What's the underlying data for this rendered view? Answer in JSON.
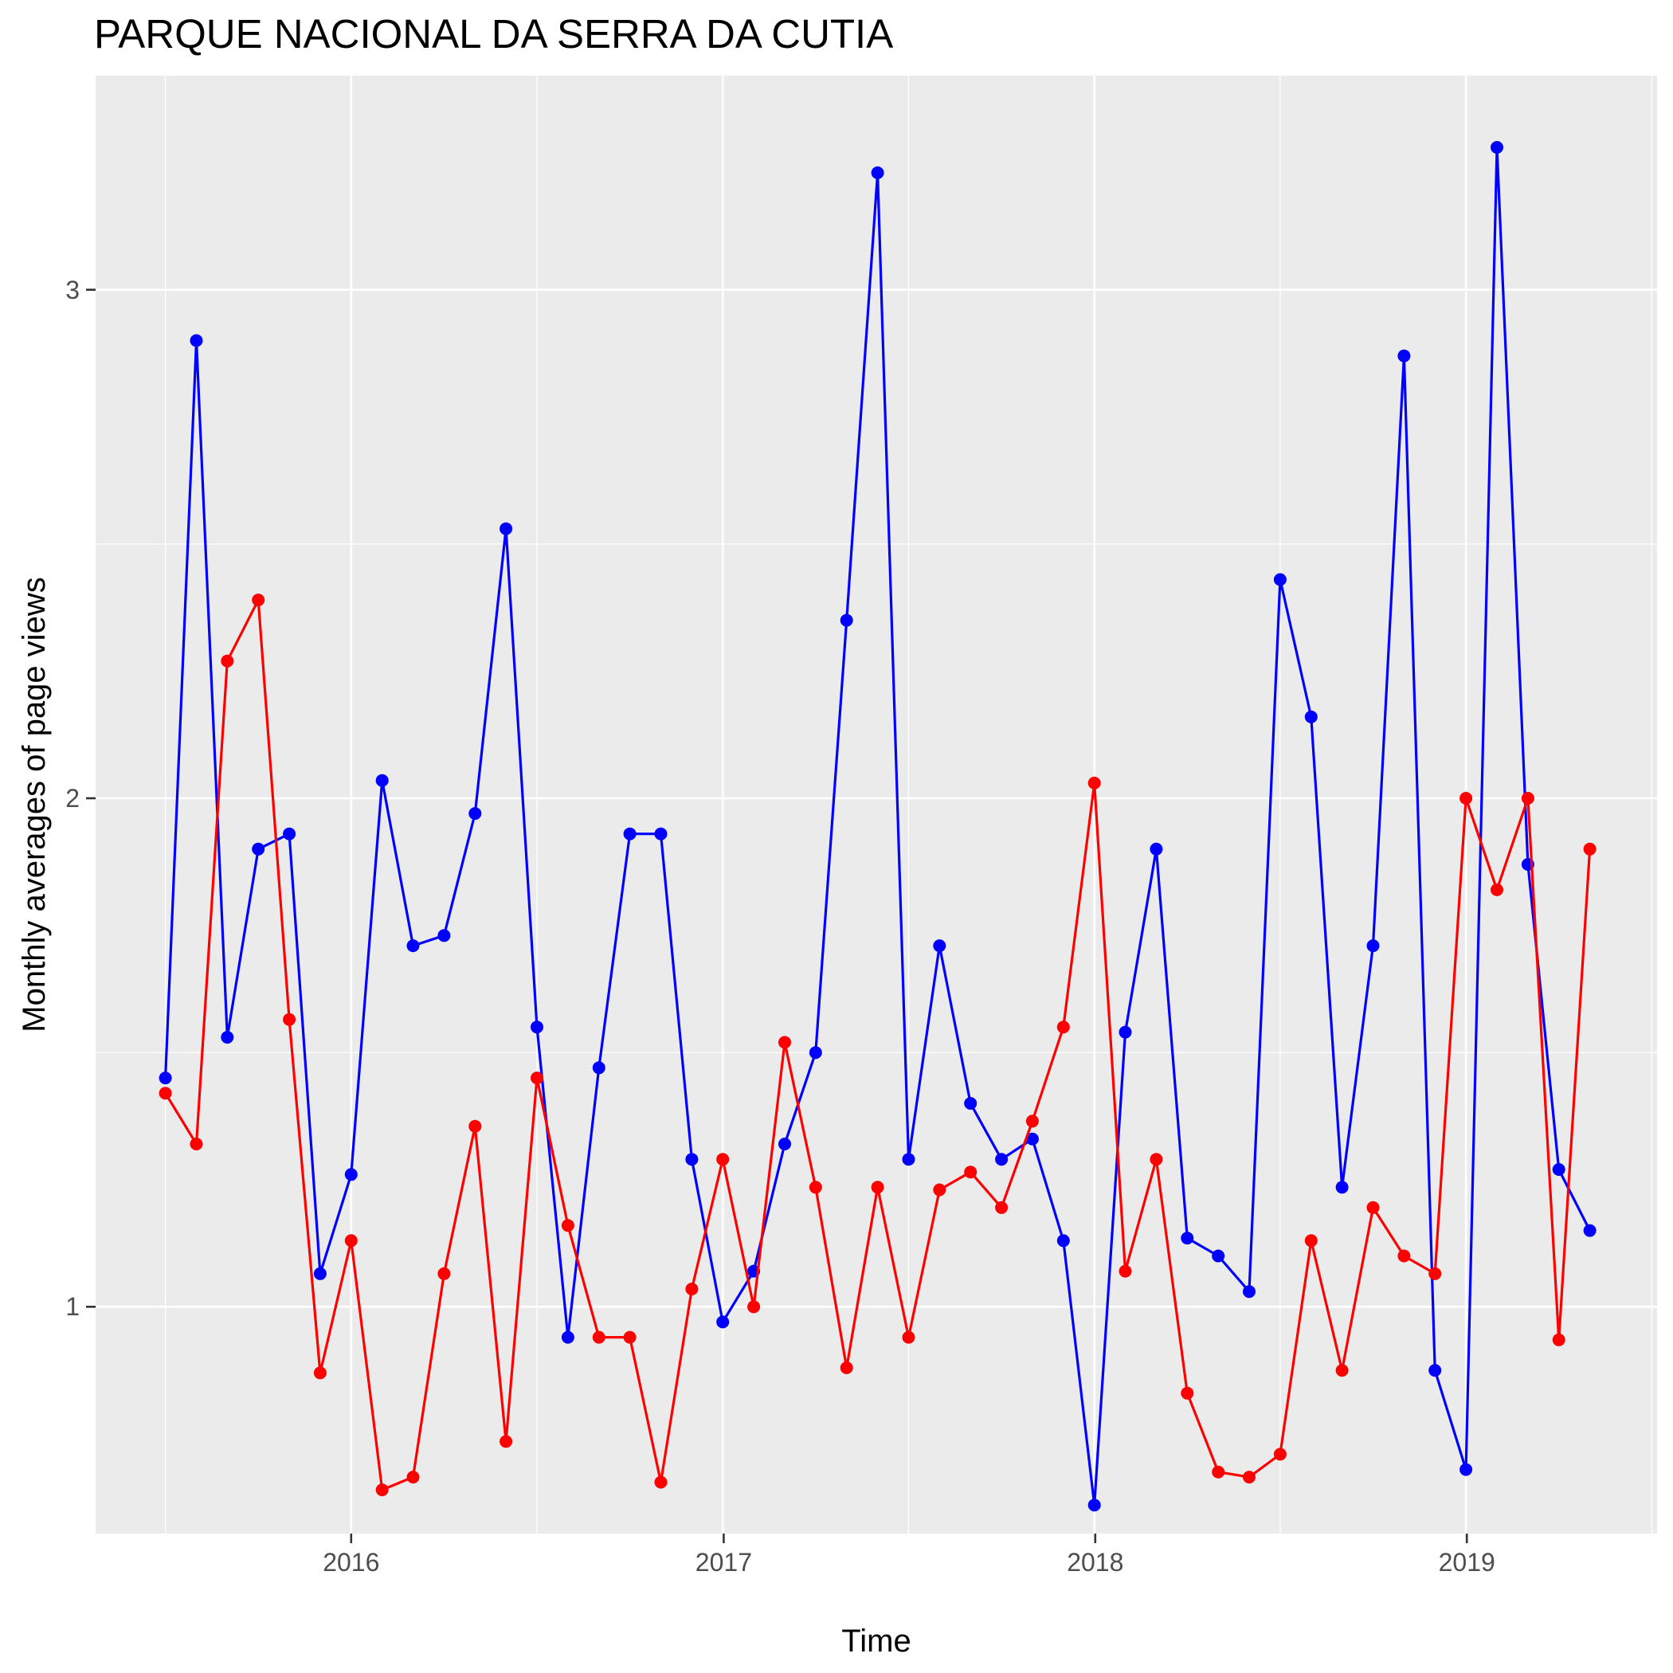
{
  "chart_data": {
    "type": "line",
    "title": "PARQUE NACIONAL DA SERRA DA CUTIA",
    "xlabel": "Time",
    "ylabel": "Monthly averages of page views",
    "x_tick_labels": [
      "2016",
      "2017",
      "2018",
      "2019"
    ],
    "y_tick_labels": [
      "1",
      "2",
      "3"
    ],
    "ylim": [
      0.5,
      3.42
    ],
    "grid": true,
    "legend": "none",
    "x": [
      "2015-07",
      "2015-08",
      "2015-09",
      "2015-10",
      "2015-11",
      "2015-12",
      "2016-01",
      "2016-02",
      "2016-03",
      "2016-04",
      "2016-05",
      "2016-06",
      "2016-07",
      "2016-08",
      "2016-09",
      "2016-10",
      "2016-11",
      "2016-12",
      "2017-01",
      "2017-02",
      "2017-03",
      "2017-04",
      "2017-05",
      "2017-06",
      "2017-07",
      "2017-08",
      "2017-09",
      "2017-10",
      "2017-11",
      "2017-12",
      "2018-01",
      "2018-02",
      "2018-03",
      "2018-04",
      "2018-05",
      "2018-06",
      "2018-07",
      "2018-08",
      "2018-09",
      "2018-10",
      "2018-11",
      "2018-12",
      "2019-01",
      "2019-02",
      "2019-03",
      "2019-04",
      "2019-05"
    ],
    "series": [
      {
        "color": "#0000ff",
        "values": [
          1.45,
          2.9,
          1.53,
          1.9,
          1.93,
          1.065,
          1.26,
          2.035,
          1.71,
          1.73,
          1.97,
          2.53,
          1.55,
          0.94,
          1.47,
          1.93,
          1.93,
          1.29,
          0.97,
          1.07,
          1.32,
          1.5,
          2.35,
          3.23,
          1.29,
          1.71,
          1.4,
          1.29,
          1.33,
          1.13,
          0.61,
          1.54,
          1.9,
          1.135,
          1.1,
          1.03,
          2.43,
          2.16,
          1.235,
          1.71,
          2.87,
          0.875,
          0.68,
          3.28,
          1.87,
          1.27,
          1.15
        ]
      },
      {
        "color": "#ff0000",
        "values": [
          1.42,
          1.32,
          2.27,
          2.39,
          1.565,
          0.87,
          1.13,
          0.64,
          0.665,
          1.065,
          1.355,
          0.735,
          1.45,
          1.16,
          0.94,
          0.94,
          0.655,
          1.035,
          1.29,
          1.0,
          1.52,
          1.235,
          0.88,
          1.235,
          0.94,
          1.23,
          1.265,
          1.195,
          1.365,
          1.55,
          2.03,
          1.07,
          1.29,
          0.83,
          0.675,
          0.665,
          0.71,
          1.13,
          0.875,
          1.195,
          1.1,
          1.065,
          2.0,
          1.82,
          2.0,
          0.935,
          1.9
        ]
      }
    ]
  }
}
